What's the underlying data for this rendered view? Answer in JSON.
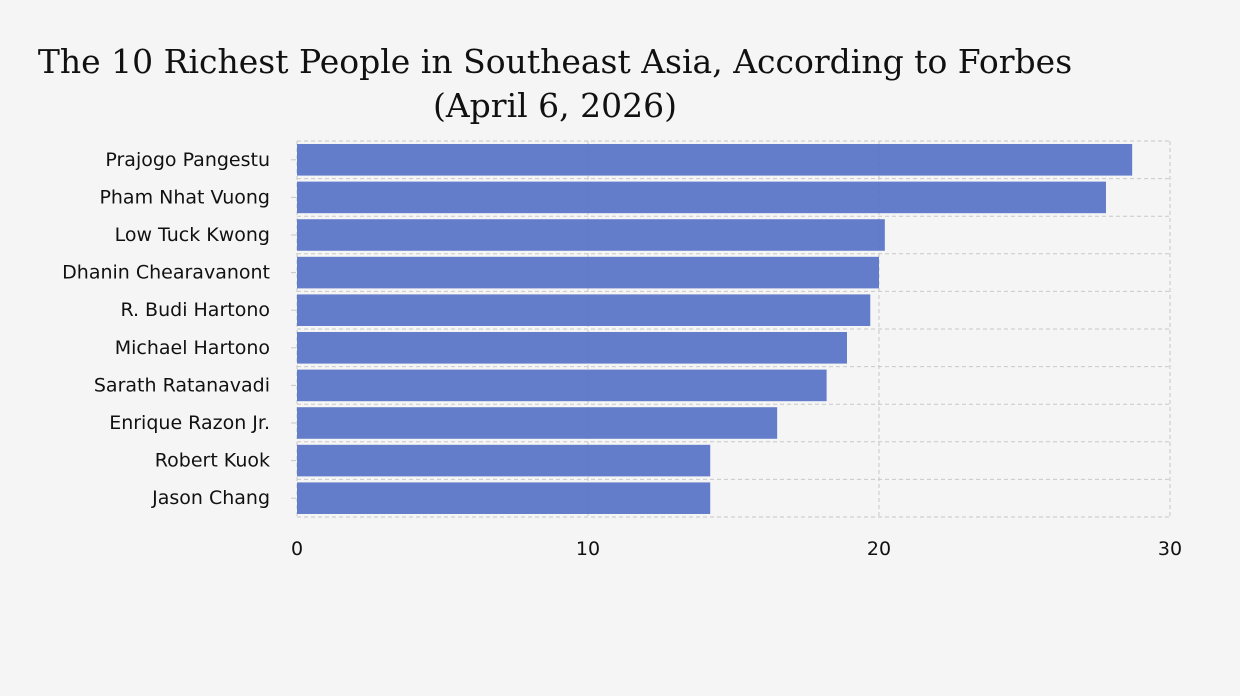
{
  "chart_data": {
    "type": "bar",
    "orientation": "horizontal",
    "title": "The 10 Richest People in Southeast Asia, According to Forbes",
    "subtitle": "(April 6, 2026)",
    "xlabel": "",
    "ylabel": "",
    "categories": [
      "Prajogo Pangestu",
      "Pham Nhat Vuong",
      "Low Tuck Kwong",
      "Dhanin Chearavanont",
      "R. Budi Hartono",
      "Michael Hartono",
      "Sarath Ratanavadi",
      "Enrique Razon Jr.",
      "Robert Kuok",
      "Jason Chang"
    ],
    "values": [
      28.7,
      27.8,
      20.2,
      20.0,
      19.7,
      18.9,
      18.2,
      16.5,
      14.2,
      14.2
    ],
    "xlim": [
      0,
      30
    ],
    "xticks": [
      0,
      10,
      20,
      30
    ],
    "grid": true,
    "bar_color": "#5470c6"
  }
}
